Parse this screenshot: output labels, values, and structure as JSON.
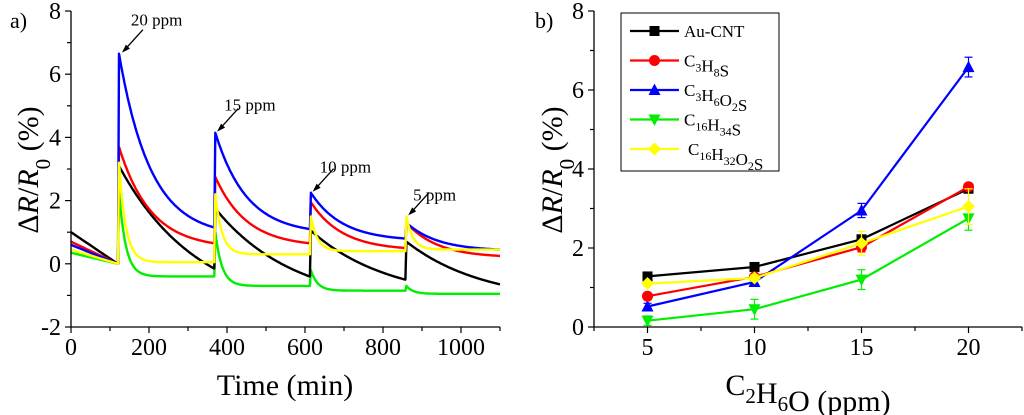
{
  "chart_data": [
    {
      "panel": "a)",
      "type": "line",
      "title": "",
      "xlabel": "Time (min)",
      "ylabel": "ΔR/R0 (%)",
      "xlim": [
        0,
        1100
      ],
      "ylim": [
        -2,
        8
      ],
      "xticks": [
        0,
        200,
        400,
        600,
        800,
        1000
      ],
      "yticks": [
        -2,
        0,
        2,
        4,
        6,
        8
      ],
      "grid": false,
      "pulse_times": [
        120,
        367,
        612,
        857
      ],
      "annotations": [
        {
          "text": "20 ppm",
          "x": 128,
          "y": 6.65
        },
        {
          "text": "15 ppm",
          "x": 372,
          "y": 4.15
        },
        {
          "text": "10 ppm",
          "x": 617,
          "y": 2.25
        },
        {
          "text": "5 ppm",
          "x": 862,
          "y": 1.5
        }
      ],
      "series": [
        {
          "name": "Au-CNT",
          "color": "#000000",
          "initial": [
            1.0,
            0.0
          ],
          "pulses": [
            [
              3.1,
              -0.15
            ],
            [
              1.75,
              -0.4
            ],
            [
              1.05,
              -0.5
            ],
            [
              0.7,
              -0.65
            ]
          ],
          "decay": "slow"
        },
        {
          "name": "C3H8S",
          "color": "#ff0000",
          "initial": [
            0.7,
            0.0
          ],
          "pulses": [
            [
              3.7,
              0.65
            ],
            [
              2.75,
              0.65
            ],
            [
              1.95,
              0.5
            ],
            [
              1.3,
              0.25
            ]
          ],
          "decay": "medium"
        },
        {
          "name": "C3H6O2S",
          "color": "#0000ff",
          "initial": [
            0.6,
            0.0
          ],
          "pulses": [
            [
              6.65,
              1.15
            ],
            [
              4.15,
              1.1
            ],
            [
              2.25,
              0.8
            ],
            [
              1.3,
              0.45
            ]
          ],
          "decay": "medium"
        },
        {
          "name": "C16H34S",
          "color": "#00ee00",
          "initial": [
            0.35,
            0.0
          ],
          "pulses": [
            [
              2.3,
              -0.4
            ],
            [
              1.0,
              -0.7
            ],
            [
              -0.2,
              -0.85
            ],
            [
              -0.7,
              -0.95
            ]
          ],
          "decay": "fast"
        },
        {
          "name": "C16H32O2S",
          "color": "#ffff00",
          "initial": [
            0.45,
            0.0
          ],
          "pulses": [
            [
              3.2,
              0.05
            ],
            [
              2.2,
              0.3
            ],
            [
              1.5,
              0.4
            ],
            [
              1.5,
              0.45
            ]
          ],
          "decay": "fast"
        }
      ]
    },
    {
      "panel": "b)",
      "type": "line",
      "title": "",
      "xlabel": "C2H6O (ppm)",
      "ylabel": "ΔR/R0 (%)",
      "xlim": [
        2.5,
        22.5
      ],
      "ylim": [
        0,
        8
      ],
      "xticks": [
        5,
        10,
        15,
        20
      ],
      "yticks": [
        0,
        2,
        4,
        6,
        8
      ],
      "grid": false,
      "legend_position": "top-left",
      "x": [
        5,
        10,
        15,
        20
      ],
      "series": [
        {
          "name": "Au-CNT",
          "color": "#000000",
          "marker": "square",
          "values": [
            1.28,
            1.52,
            2.22,
            3.5
          ],
          "errors": [
            0.05,
            0.05,
            0.1,
            0.1
          ]
        },
        {
          "name": "C3H8S",
          "color": "#ff0000",
          "marker": "circle",
          "values": [
            0.78,
            1.27,
            2.02,
            3.55
          ],
          "errors": [
            0.05,
            0.08,
            0.12,
            0.08
          ]
        },
        {
          "name": "C3H6O2S",
          "color": "#0000ff",
          "marker": "triangle-up",
          "values": [
            0.52,
            1.14,
            2.95,
            6.58
          ],
          "errors": [
            0.08,
            0.1,
            0.18,
            0.25
          ]
        },
        {
          "name": "C16H34S",
          "color": "#00ee00",
          "marker": "triangle-down",
          "values": [
            0.16,
            0.45,
            1.2,
            2.75
          ],
          "errors": [
            0.12,
            0.25,
            0.25,
            0.3
          ]
        },
        {
          "name": "C16H32O2S",
          "color": "#ffff00",
          "marker": "diamond",
          "values": [
            1.1,
            1.24,
            2.12,
            3.05
          ],
          "errors": [
            0.05,
            0.08,
            0.3,
            0.45
          ]
        }
      ],
      "legend": [
        {
          "label": "Au-CNT",
          "parts": [
            [
              "Au-CNT",
              ""
            ]
          ]
        },
        {
          "label": "C3H8S",
          "parts": [
            [
              "C",
              "3"
            ],
            [
              "H",
              "8"
            ],
            [
              "S",
              ""
            ]
          ]
        },
        {
          "label": "C3H6O2S",
          "parts": [
            [
              "C",
              "3"
            ],
            [
              "H",
              "6"
            ],
            [
              "O",
              "2"
            ],
            [
              "S",
              ""
            ]
          ]
        },
        {
          "label": "C16H34S",
          "parts": [
            [
              "C",
              "16"
            ],
            [
              "H",
              "34"
            ],
            [
              "S",
              ""
            ]
          ]
        },
        {
          "label": "C16H32O2S",
          "parts": [
            [
              "C",
              "16"
            ],
            [
              "H",
              "32"
            ],
            [
              "O",
              "2"
            ],
            [
              "S",
              ""
            ]
          ]
        }
      ]
    }
  ]
}
